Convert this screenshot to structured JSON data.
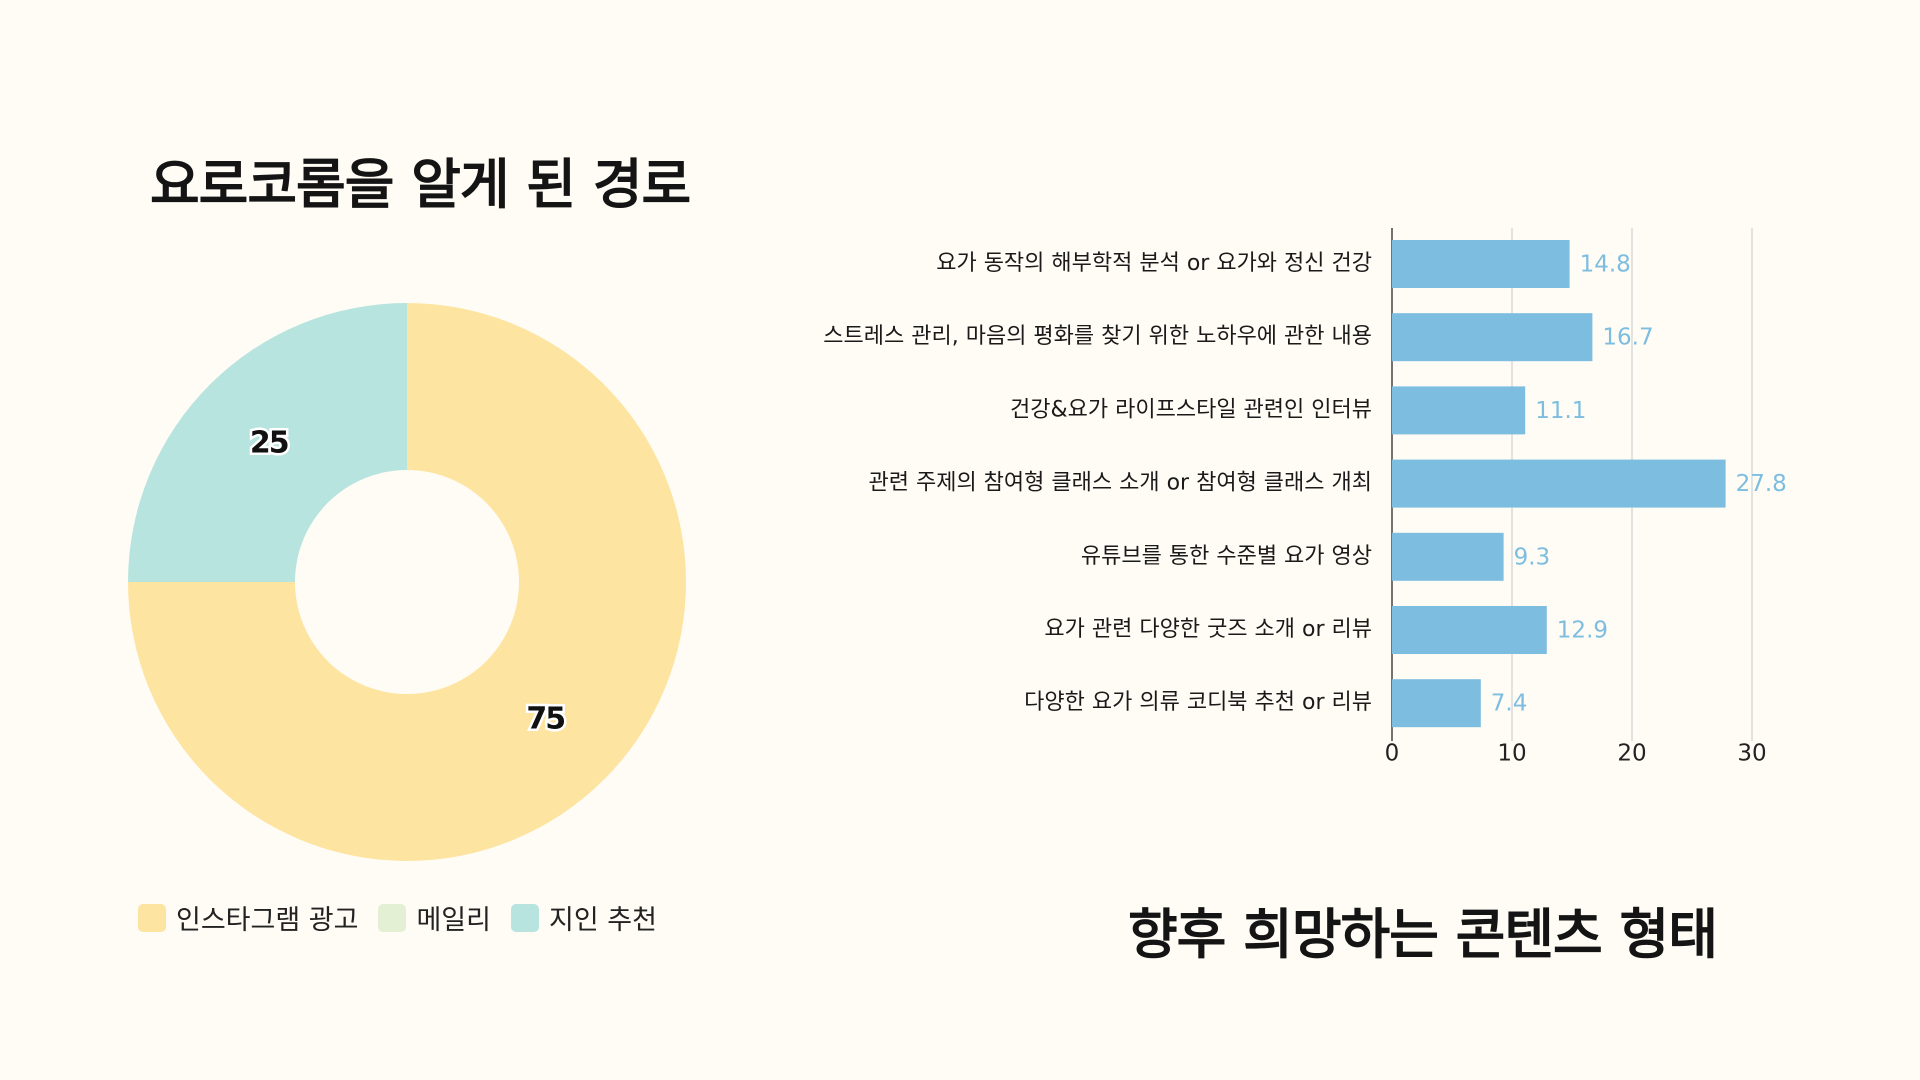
{
  "colors": {
    "background": "#fffcf5",
    "instagram": "#fee4a1",
    "mailing": "#e3f0d3",
    "referral": "#b8e4df",
    "bar": "#7cbde0",
    "bar_label": "#7cbde0"
  },
  "chart_data": [
    {
      "type": "pie",
      "donut": true,
      "title": "요로코롬을 알게 된 경로",
      "categories": [
        "인스타그램 광고",
        "메일리",
        "지인 추천"
      ],
      "values": [
        75,
        0,
        25
      ],
      "data_labels": [
        "75",
        "",
        "25"
      ],
      "colors": [
        "#fee4a1",
        "#e3f0d3",
        "#b8e4df"
      ],
      "legend_position": "bottom"
    },
    {
      "type": "bar",
      "orientation": "horizontal",
      "title": "향후 희망하는 콘텐츠 형태",
      "categories": [
        "요가 동작의 해부학적 분석 or 요가와 정신 건강",
        "스트레스 관리, 마음의 평화를 찾기 위한 노하우에 관한 내용",
        "건강&요가 라이프스타일 관련인 인터뷰",
        "관련 주제의 참여형 클래스 소개 or 참여형 클래스 개최",
        "유튜브를 통한 수준별 요가 영상",
        "요가 관련 다양한 굿즈 소개 or 리뷰",
        "다양한 요가 의류 코디북 추천 or 리뷰"
      ],
      "values": [
        14.8,
        16.7,
        11.1,
        27.8,
        9.3,
        12.9,
        7.4
      ],
      "value_labels": [
        "14.8",
        "16.7",
        "11.1",
        "27.8",
        "9.3",
        "12.9",
        "7.4"
      ],
      "xlim": [
        0,
        30
      ],
      "ticks": [
        0,
        10,
        20,
        30
      ],
      "tick_labels": [
        "0",
        "10",
        "20",
        "30"
      ],
      "grid": true
    }
  ]
}
